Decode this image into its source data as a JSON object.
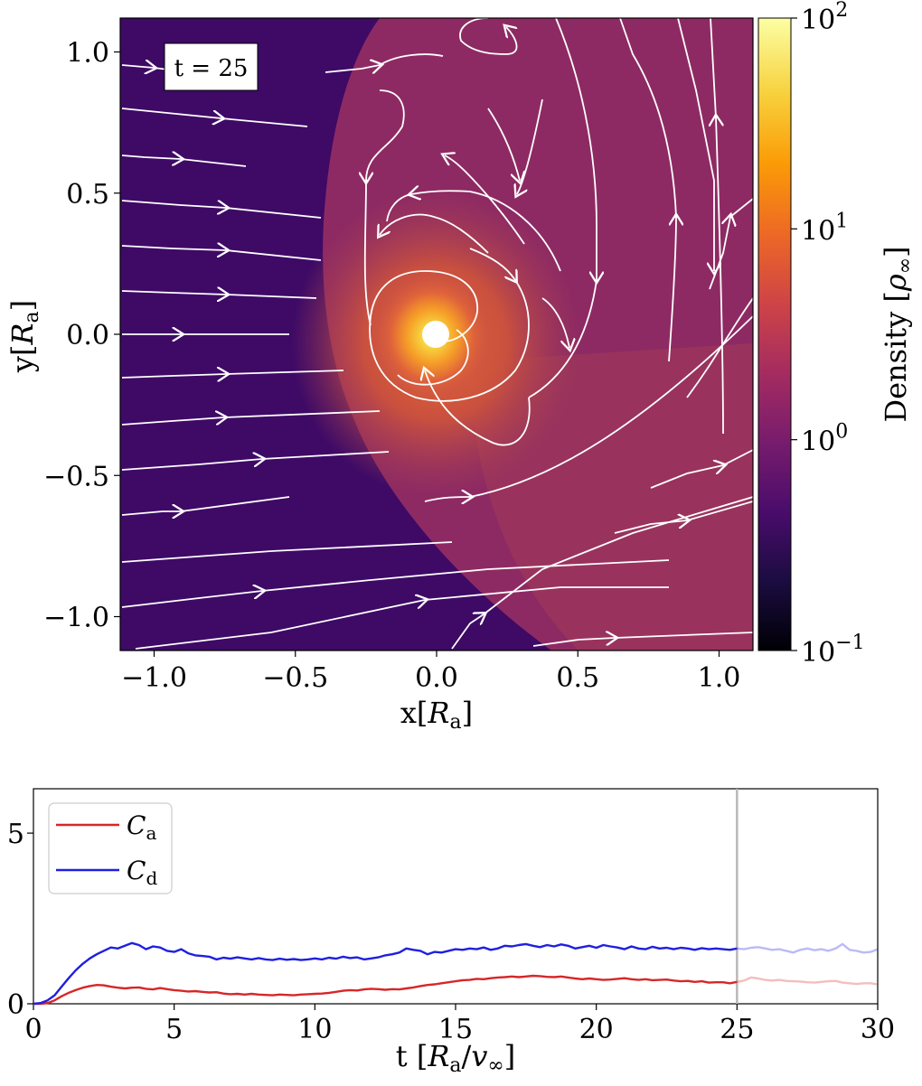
{
  "chart_data": [
    {
      "type": "heatmap",
      "title": "",
      "time_label": "t = 25",
      "xlabel": "x[R_a]",
      "ylabel": "y[R_a]",
      "xlim": [
        -1.12,
        1.12
      ],
      "ylim": [
        -1.12,
        1.12
      ],
      "xticks": [
        -1.0,
        -0.5,
        0.0,
        0.5,
        1.0
      ],
      "xtick_labels": [
        "−1.0",
        "−0.5",
        "0.0",
        "0.5",
        "1.0"
      ],
      "yticks": [
        -1.0,
        -0.5,
        0.0,
        0.5,
        1.0
      ],
      "ytick_labels": [
        "−1.0",
        "−0.5",
        "0.0",
        "0.5",
        "1.0"
      ],
      "colorbar": {
        "label": "Density [ρ∞]",
        "scale": "log",
        "range": [
          0.1,
          100
        ],
        "tick_values": [
          100,
          10,
          1,
          0.1
        ],
        "tick_labels": [
          "10^2",
          "10^1",
          "10^0",
          "10^-1"
        ],
        "colormap": [
          "#000004",
          "#1b0c41",
          "#4a0c6b",
          "#781c6d",
          "#a52c60",
          "#cf4446",
          "#ed6925",
          "#fb9b06",
          "#f7d13d",
          "#fcffa4"
        ]
      },
      "accretor": {
        "x": 0.0,
        "y": 0.0,
        "radius": 0.05
      },
      "streamlines": "white flow lines entering from left (x<-0.35) horizontally, bending around the bow shock and spiraling clockwise into the accretor"
    },
    {
      "type": "line",
      "xlabel": "t [R_a/v∞]",
      "ylabel": "",
      "xlim": [
        0,
        30
      ],
      "ylim": [
        0,
        6.3
      ],
      "xticks": [
        0,
        5,
        10,
        15,
        20,
        25,
        30
      ],
      "xtick_labels": [
        "0",
        "5",
        "10",
        "15",
        "20",
        "25",
        "30"
      ],
      "yticks": [
        0,
        5
      ],
      "ytick_labels": [
        "0",
        "5"
      ],
      "vertical_marker": 25,
      "legend_position": "top-left",
      "series": [
        {
          "name": "C_a",
          "color": "#d62728",
          "x": [
            0,
            0.25,
            0.5,
            0.75,
            1,
            1.25,
            1.5,
            1.75,
            2,
            2.25,
            2.5,
            2.75,
            3,
            3.25,
            3.5,
            3.75,
            4,
            4.25,
            4.5,
            4.75,
            5,
            5.25,
            5.5,
            5.75,
            6,
            6.25,
            6.5,
            6.75,
            7,
            7.25,
            7.5,
            7.75,
            8,
            8.25,
            8.5,
            8.75,
            9,
            9.25,
            9.5,
            9.75,
            10,
            10.25,
            10.5,
            10.75,
            11,
            11.25,
            11.5,
            11.75,
            12,
            12.25,
            12.5,
            12.75,
            13,
            13.25,
            13.5,
            13.75,
            14,
            14.25,
            14.5,
            14.75,
            15,
            15.25,
            15.5,
            15.75,
            16,
            16.25,
            16.5,
            16.75,
            17,
            17.25,
            17.5,
            17.75,
            18,
            18.25,
            18.5,
            18.75,
            19,
            19.25,
            19.5,
            19.75,
            20,
            20.25,
            20.5,
            20.75,
            21,
            21.25,
            21.5,
            21.75,
            22,
            22.25,
            22.5,
            22.75,
            23,
            23.25,
            23.5,
            23.75,
            24,
            24.25,
            24.5,
            24.75,
            25,
            25.25,
            25.5,
            25.75,
            26,
            26.25,
            26.5,
            26.75,
            27,
            27.25,
            27.5,
            27.75,
            28,
            28.25,
            28.5,
            28.75,
            29,
            29.25,
            29.5,
            29.75,
            30
          ],
          "values": [
            0.0,
            0.0,
            0.02,
            0.1,
            0.22,
            0.32,
            0.4,
            0.47,
            0.52,
            0.55,
            0.54,
            0.5,
            0.47,
            0.45,
            0.47,
            0.48,
            0.44,
            0.42,
            0.46,
            0.43,
            0.4,
            0.38,
            0.36,
            0.37,
            0.35,
            0.33,
            0.34,
            0.3,
            0.28,
            0.29,
            0.27,
            0.29,
            0.27,
            0.26,
            0.25,
            0.27,
            0.26,
            0.25,
            0.27,
            0.28,
            0.29,
            0.3,
            0.32,
            0.35,
            0.38,
            0.4,
            0.39,
            0.42,
            0.44,
            0.43,
            0.41,
            0.43,
            0.42,
            0.45,
            0.48,
            0.52,
            0.55,
            0.57,
            0.6,
            0.63,
            0.66,
            0.69,
            0.7,
            0.73,
            0.72,
            0.75,
            0.77,
            0.78,
            0.8,
            0.78,
            0.8,
            0.82,
            0.81,
            0.79,
            0.78,
            0.8,
            0.77,
            0.74,
            0.72,
            0.74,
            0.72,
            0.7,
            0.71,
            0.73,
            0.75,
            0.72,
            0.7,
            0.72,
            0.69,
            0.7,
            0.71,
            0.68,
            0.66,
            0.67,
            0.64,
            0.66,
            0.62,
            0.63,
            0.63,
            0.6,
            0.64,
            0.68,
            0.77,
            0.74,
            0.7,
            0.68,
            0.7,
            0.67,
            0.66,
            0.65,
            0.63,
            0.62,
            0.64,
            0.66,
            0.67,
            0.62,
            0.6,
            0.58,
            0.6,
            0.6,
            0.57
          ]
        },
        {
          "name": "C_d",
          "color": "#1f1fe0",
          "x": [
            0,
            0.25,
            0.5,
            0.75,
            1,
            1.25,
            1.5,
            1.75,
            2,
            2.25,
            2.5,
            2.75,
            3,
            3.25,
            3.5,
            3.75,
            4,
            4.25,
            4.5,
            4.75,
            5,
            5.25,
            5.5,
            5.75,
            6,
            6.25,
            6.5,
            6.75,
            7,
            7.25,
            7.5,
            7.75,
            8,
            8.25,
            8.5,
            8.75,
            9,
            9.25,
            9.5,
            9.75,
            10,
            10.25,
            10.5,
            10.75,
            11,
            11.25,
            11.5,
            11.75,
            12,
            12.25,
            12.5,
            12.75,
            13,
            13.25,
            13.5,
            13.75,
            14,
            14.25,
            14.5,
            14.75,
            15,
            15.25,
            15.5,
            15.75,
            16,
            16.25,
            16.5,
            16.75,
            17,
            17.25,
            17.5,
            17.75,
            18,
            18.25,
            18.5,
            18.75,
            19,
            19.25,
            19.5,
            19.75,
            20,
            20.25,
            20.5,
            20.75,
            21,
            21.25,
            21.5,
            21.75,
            22,
            22.25,
            22.5,
            22.75,
            23,
            23.25,
            23.5,
            23.75,
            24,
            24.25,
            24.5,
            24.75,
            25,
            25.25,
            25.5,
            25.75,
            26,
            26.25,
            26.5,
            26.75,
            27,
            27.25,
            27.5,
            27.75,
            28,
            28.25,
            28.5,
            28.75,
            29,
            29.25,
            29.5,
            29.75,
            30
          ],
          "values": [
            0.0,
            0.02,
            0.1,
            0.25,
            0.5,
            0.75,
            0.98,
            1.17,
            1.33,
            1.45,
            1.55,
            1.65,
            1.62,
            1.7,
            1.78,
            1.72,
            1.6,
            1.68,
            1.65,
            1.55,
            1.52,
            1.6,
            1.48,
            1.42,
            1.4,
            1.38,
            1.3,
            1.35,
            1.32,
            1.36,
            1.33,
            1.3,
            1.34,
            1.3,
            1.28,
            1.32,
            1.29,
            1.31,
            1.28,
            1.3,
            1.33,
            1.3,
            1.35,
            1.32,
            1.38,
            1.34,
            1.36,
            1.3,
            1.33,
            1.36,
            1.42,
            1.45,
            1.5,
            1.62,
            1.58,
            1.55,
            1.45,
            1.52,
            1.5,
            1.55,
            1.6,
            1.58,
            1.62,
            1.6,
            1.65,
            1.58,
            1.62,
            1.7,
            1.68,
            1.72,
            1.75,
            1.7,
            1.66,
            1.72,
            1.68,
            1.74,
            1.7,
            1.62,
            1.66,
            1.7,
            1.64,
            1.72,
            1.68,
            1.65,
            1.6,
            1.68,
            1.62,
            1.6,
            1.67,
            1.62,
            1.64,
            1.6,
            1.64,
            1.62,
            1.58,
            1.63,
            1.6,
            1.62,
            1.6,
            1.58,
            1.62,
            1.6,
            1.64,
            1.66,
            1.62,
            1.58,
            1.6,
            1.55,
            1.5,
            1.58,
            1.62,
            1.57,
            1.6,
            1.55,
            1.62,
            1.75,
            1.58,
            1.55,
            1.5,
            1.52,
            1.6
          ]
        }
      ]
    }
  ]
}
